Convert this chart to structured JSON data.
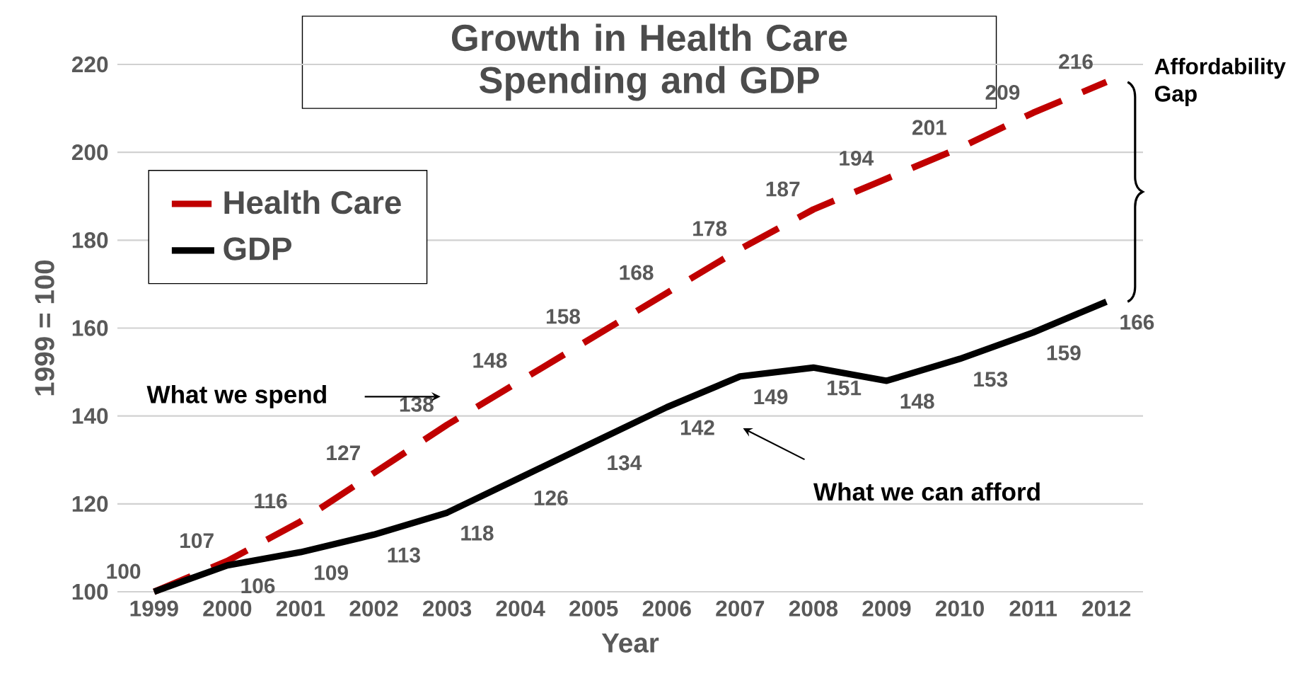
{
  "chart_data": {
    "type": "line",
    "title": "Growth in Health Care Spending and GDP",
    "xlabel": "Year",
    "ylabel": "1999 = 100",
    "categories": [
      "1999",
      "2000",
      "2001",
      "2002",
      "2003",
      "2004",
      "2005",
      "2006",
      "2007",
      "2008",
      "2009",
      "2010",
      "2011",
      "2012"
    ],
    "series": [
      {
        "name": "Health Care",
        "color": "#c00000",
        "line_style": "dashed",
        "values": [
          100,
          107,
          116,
          127,
          138,
          148,
          158,
          168,
          178,
          187,
          194,
          201,
          209,
          216
        ],
        "value_labels": [
          "100",
          "107",
          "116",
          "127",
          "138",
          "148",
          "158",
          "168",
          "178",
          "187",
          "194",
          "201",
          "209",
          "216"
        ]
      },
      {
        "name": "GDP",
        "color": "#000000",
        "line_style": "solid",
        "values": [
          100,
          106,
          109,
          113,
          118,
          126,
          134,
          142,
          149,
          151,
          148,
          153,
          159,
          166
        ],
        "value_labels": [
          null,
          "106",
          "109",
          "113",
          "118",
          "126",
          "134",
          "142",
          "149",
          "151",
          "148",
          "153",
          "159",
          "166"
        ]
      }
    ],
    "ylim": [
      100,
      220
    ],
    "yticks": [
      100,
      120,
      140,
      160,
      180,
      200,
      220
    ],
    "grid": "y",
    "legend": "top left",
    "marker": "none",
    "annotations": [
      "What we spend",
      "What we can afford",
      "Affordability Gap"
    ]
  }
}
